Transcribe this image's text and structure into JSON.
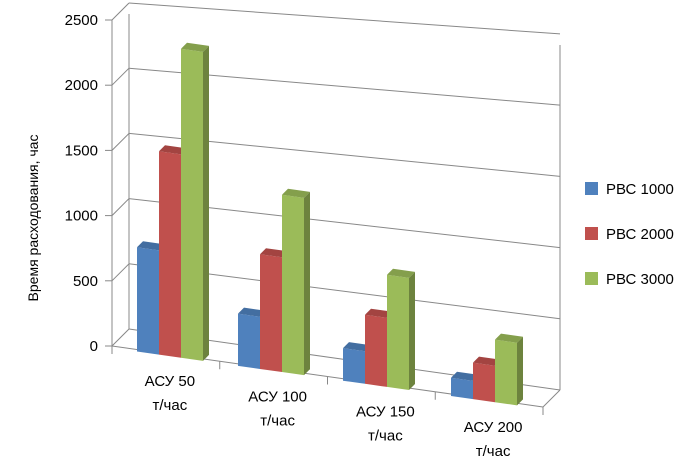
{
  "chart_data": {
    "type": "bar",
    "title": "",
    "xlabel": "",
    "ylabel": "Время расходования, час",
    "ylim": [
      0,
      2500
    ],
    "yticks": [
      0,
      500,
      1000,
      1500,
      2000,
      2500
    ],
    "grid": true,
    "legend_position": "right",
    "categories": [
      [
        "АСУ 50",
        "т/час"
      ],
      [
        "АСУ 100",
        "т/час"
      ],
      [
        "АСУ 150",
        "т/час"
      ],
      [
        "АСУ 200",
        "т/час"
      ]
    ],
    "series": [
      {
        "name": "РВС 1000",
        "color": "#4F81BD",
        "values": [
          800,
          400,
          250,
          140
        ]
      },
      {
        "name": "РВС 2000",
        "color": "#C0504D",
        "values": [
          1560,
          880,
          530,
          280
        ]
      },
      {
        "name": "РВС 3000",
        "color": "#9BBB59",
        "values": [
          2370,
          1360,
          860,
          480
        ]
      }
    ]
  }
}
